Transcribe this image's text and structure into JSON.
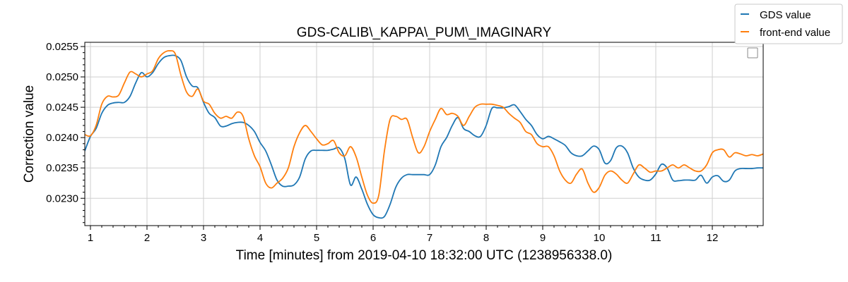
{
  "chart_data": {
    "type": "line",
    "title": "GDS-CALIB\\_KAPPA\\_PUM\\_IMAGINARY",
    "xlabel": "Time [minutes] from 2019-04-10 18:32:00 UTC (1238956338.0)",
    "ylabel": "Correction value",
    "xlim": [
      0.9,
      12.9
    ],
    "ylim": [
      0.02255,
      0.02557
    ],
    "x_ticks": [
      1,
      2,
      3,
      4,
      5,
      6,
      7,
      8,
      9,
      10,
      11,
      12
    ],
    "x_tick_labels": [
      "1",
      "2",
      "3",
      "4",
      "5",
      "6",
      "7",
      "8",
      "9",
      "10",
      "11",
      "12"
    ],
    "y_ticks": [
      0.023,
      0.0235,
      0.024,
      0.0245,
      0.025,
      0.0255
    ],
    "y_tick_labels": [
      "0.0230",
      "0.0235",
      "0.0240",
      "0.0245",
      "0.0250",
      "0.0255"
    ],
    "grid": true,
    "legend_position": "top-right",
    "series": [
      {
        "name": "GDS value",
        "color": "#1f77b4",
        "x": [
          0.9,
          1.0,
          1.1,
          1.2,
          1.3,
          1.4,
          1.5,
          1.6,
          1.7,
          1.8,
          1.9,
          2.0,
          2.1,
          2.2,
          2.3,
          2.4,
          2.5,
          2.6,
          2.7,
          2.8,
          2.9,
          3.0,
          3.1,
          3.2,
          3.3,
          3.4,
          3.5,
          3.6,
          3.7,
          3.8,
          3.9,
          4.0,
          4.1,
          4.2,
          4.3,
          4.4,
          4.5,
          4.6,
          4.7,
          4.8,
          4.9,
          5.0,
          5.1,
          5.2,
          5.3,
          5.4,
          5.5,
          5.6,
          5.7,
          5.8,
          5.9,
          6.0,
          6.1,
          6.2,
          6.3,
          6.4,
          6.5,
          6.6,
          6.7,
          6.8,
          6.9,
          7.0,
          7.1,
          7.2,
          7.3,
          7.4,
          7.5,
          7.6,
          7.7,
          7.8,
          7.9,
          8.0,
          8.1,
          8.2,
          8.3,
          8.4,
          8.5,
          8.6,
          8.7,
          8.8,
          8.9,
          9.0,
          9.1,
          9.2,
          9.3,
          9.4,
          9.5,
          9.6,
          9.7,
          9.8,
          9.9,
          10.0,
          10.1,
          10.2,
          10.3,
          10.4,
          10.5,
          10.6,
          10.7,
          10.8,
          10.9,
          11.0,
          11.1,
          11.2,
          11.3,
          11.4,
          11.5,
          11.6,
          11.7,
          11.8,
          11.9,
          12.0,
          12.1,
          12.2,
          12.3,
          12.4,
          12.5,
          12.6,
          12.7,
          12.8,
          12.9
        ],
        "y": [
          0.02378,
          0.02402,
          0.02415,
          0.0244,
          0.02453,
          0.02457,
          0.02458,
          0.02458,
          0.02468,
          0.0249,
          0.02507,
          0.025,
          0.02507,
          0.02522,
          0.02532,
          0.02535,
          0.02535,
          0.02527,
          0.025,
          0.02485,
          0.02482,
          0.02458,
          0.0244,
          0.02433,
          0.02419,
          0.02419,
          0.02423,
          0.02425,
          0.02425,
          0.0242,
          0.0241,
          0.02392,
          0.02378,
          0.02355,
          0.0233,
          0.0232,
          0.0232,
          0.02322,
          0.02335,
          0.02365,
          0.02378,
          0.02379,
          0.02379,
          0.02379,
          0.02381,
          0.02383,
          0.02365,
          0.02322,
          0.02335,
          0.02315,
          0.0229,
          0.02273,
          0.02268,
          0.0227,
          0.0229,
          0.02318,
          0.02333,
          0.02339,
          0.02339,
          0.02339,
          0.02339,
          0.02339,
          0.02355,
          0.02385,
          0.024,
          0.0242,
          0.02433,
          0.02415,
          0.0241,
          0.02403,
          0.02402,
          0.0242,
          0.02448,
          0.02449,
          0.02449,
          0.02451,
          0.02454,
          0.02443,
          0.0243,
          0.0242,
          0.02405,
          0.02398,
          0.02402,
          0.02398,
          0.02393,
          0.02387,
          0.02375,
          0.0237,
          0.0237,
          0.02378,
          0.02386,
          0.0238,
          0.02358,
          0.02362,
          0.02383,
          0.02386,
          0.02375,
          0.0235,
          0.02335,
          0.0233,
          0.0233,
          0.0234,
          0.02356,
          0.0235,
          0.0233,
          0.02329,
          0.0233,
          0.0233,
          0.0233,
          0.02338,
          0.02325,
          0.02335,
          0.02337,
          0.02328,
          0.0233,
          0.02345,
          0.02349,
          0.02349,
          0.02349,
          0.0235,
          0.0235
        ]
      },
      {
        "name": "front-end value",
        "color": "#ff7f0e",
        "x": [
          0.9,
          1.0,
          1.1,
          1.2,
          1.3,
          1.4,
          1.5,
          1.6,
          1.7,
          1.8,
          1.9,
          2.0,
          2.1,
          2.2,
          2.3,
          2.4,
          2.5,
          2.6,
          2.7,
          2.8,
          2.9,
          3.0,
          3.1,
          3.2,
          3.3,
          3.4,
          3.5,
          3.6,
          3.7,
          3.8,
          3.9,
          4.0,
          4.1,
          4.2,
          4.3,
          4.4,
          4.5,
          4.6,
          4.7,
          4.8,
          4.9,
          5.0,
          5.1,
          5.2,
          5.3,
          5.4,
          5.5,
          5.6,
          5.7,
          5.8,
          5.9,
          6.0,
          6.1,
          6.2,
          6.3,
          6.4,
          6.5,
          6.6,
          6.7,
          6.8,
          6.9,
          7.0,
          7.1,
          7.2,
          7.3,
          7.4,
          7.5,
          7.6,
          7.7,
          7.8,
          7.9,
          8.0,
          8.1,
          8.2,
          8.3,
          8.4,
          8.5,
          8.6,
          8.7,
          8.8,
          8.9,
          9.0,
          9.1,
          9.2,
          9.3,
          9.4,
          9.5,
          9.6,
          9.7,
          9.8,
          9.9,
          10.0,
          10.1,
          10.2,
          10.3,
          10.4,
          10.5,
          10.6,
          10.7,
          10.8,
          10.9,
          11.0,
          11.1,
          11.2,
          11.3,
          11.4,
          11.5,
          11.6,
          11.7,
          11.8,
          11.9,
          12.0,
          12.1,
          12.2,
          12.3,
          12.4,
          12.5,
          12.6,
          12.7,
          12.8,
          12.9
        ],
        "y": [
          0.02405,
          0.02403,
          0.0242,
          0.02455,
          0.02468,
          0.02467,
          0.0247,
          0.0249,
          0.02508,
          0.02505,
          0.025,
          0.02505,
          0.0251,
          0.0253,
          0.0254,
          0.02543,
          0.02538,
          0.02503,
          0.02475,
          0.02468,
          0.0248,
          0.0246,
          0.02455,
          0.0244,
          0.02432,
          0.02435,
          0.02432,
          0.02442,
          0.02435,
          0.02398,
          0.0237,
          0.02352,
          0.02325,
          0.02317,
          0.02325,
          0.02333,
          0.0235,
          0.02385,
          0.02408,
          0.0242,
          0.0241,
          0.02398,
          0.02388,
          0.0239,
          0.02395,
          0.02375,
          0.0237,
          0.02385,
          0.02368,
          0.02335,
          0.02305,
          0.02292,
          0.02305,
          0.02378,
          0.0243,
          0.02435,
          0.0243,
          0.0243,
          0.024,
          0.02375,
          0.02385,
          0.0241,
          0.0243,
          0.02448,
          0.02438,
          0.0244,
          0.02435,
          0.0242,
          0.02435,
          0.0245,
          0.02455,
          0.02455,
          0.02455,
          0.02453,
          0.0245,
          0.0244,
          0.02432,
          0.02425,
          0.0241,
          0.02405,
          0.0239,
          0.02385,
          0.02385,
          0.0237,
          0.02345,
          0.0233,
          0.02325,
          0.0234,
          0.02348,
          0.02325,
          0.0231,
          0.02318,
          0.02338,
          0.02345,
          0.0234,
          0.0233,
          0.02325,
          0.0234,
          0.02355,
          0.0235,
          0.02343,
          0.02345,
          0.02345,
          0.0235,
          0.02355,
          0.0235,
          0.02355,
          0.0235,
          0.02345,
          0.02345,
          0.02355,
          0.02375,
          0.0238,
          0.0238,
          0.02368,
          0.02375,
          0.02373,
          0.0237,
          0.02372,
          0.0237,
          0.02373
        ]
      }
    ]
  }
}
